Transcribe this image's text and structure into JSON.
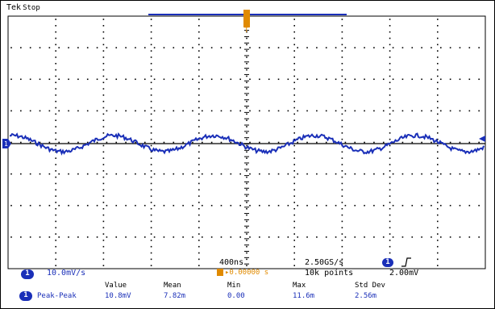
{
  "header": {
    "brand": "Tek",
    "state": "Stop"
  },
  "channel": {
    "number": "1",
    "label": "10.0mV/div",
    "scale": "10.0mV/s",
    "color": "#1a2fb8"
  },
  "timebase": {
    "time_per_div": "400ns",
    "sample_rate": "2.50GS/s",
    "record_length": "10k points",
    "delay": "▸0.00000 s"
  },
  "trigger": {
    "channel": "1",
    "slope_icon": "rising-edge-icon",
    "level": "2.00mV",
    "marker_color": "#e08a00"
  },
  "measurements": {
    "headers": [
      "Value",
      "Mean",
      "Min",
      "Max",
      "Std Dev"
    ],
    "rows": [
      {
        "source": "1",
        "name": "Peak-Peak",
        "values": [
          "10.8mV",
          "7.82m",
          "0.00",
          "11.6m",
          "2.56m"
        ]
      }
    ]
  },
  "colors": {
    "trace": "#1a2fb8",
    "trigger": "#e08a00",
    "grid": "#000000"
  }
}
